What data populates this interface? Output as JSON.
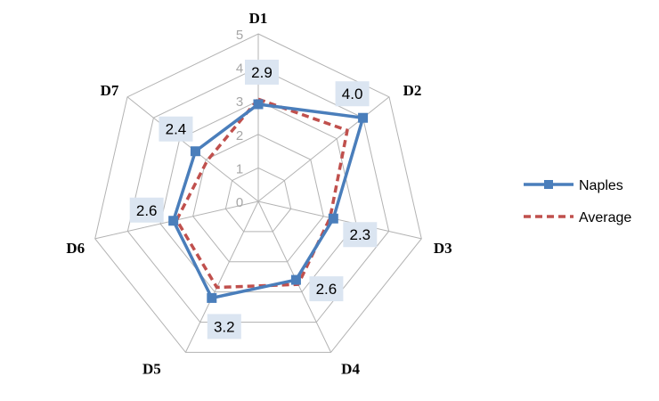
{
  "chart_data": {
    "type": "radar",
    "categories": [
      "D1",
      "D2",
      "D3",
      "D4",
      "D5",
      "D6",
      "D7"
    ],
    "rlim": [
      0,
      5
    ],
    "ticks": [
      "0",
      "1",
      "2",
      "3",
      "4",
      "5"
    ],
    "grid": true,
    "legend": "right",
    "series": [
      {
        "name": "Naples",
        "values": [
          2.9,
          4.0,
          2.3,
          2.6,
          3.2,
          2.6,
          2.4
        ],
        "labels": [
          "2.9",
          "4.0",
          "2.3",
          "2.6",
          "3.2",
          "2.6",
          "2.4"
        ],
        "color": "#4a7ebb",
        "style": "solid-square-markers"
      },
      {
        "name": "Average",
        "values": [
          3.05,
          3.4,
          2.2,
          2.75,
          2.85,
          2.5,
          1.95
        ],
        "color": "#c0504d",
        "style": "dashed"
      }
    ],
    "label_background": "#dbe5f1"
  }
}
